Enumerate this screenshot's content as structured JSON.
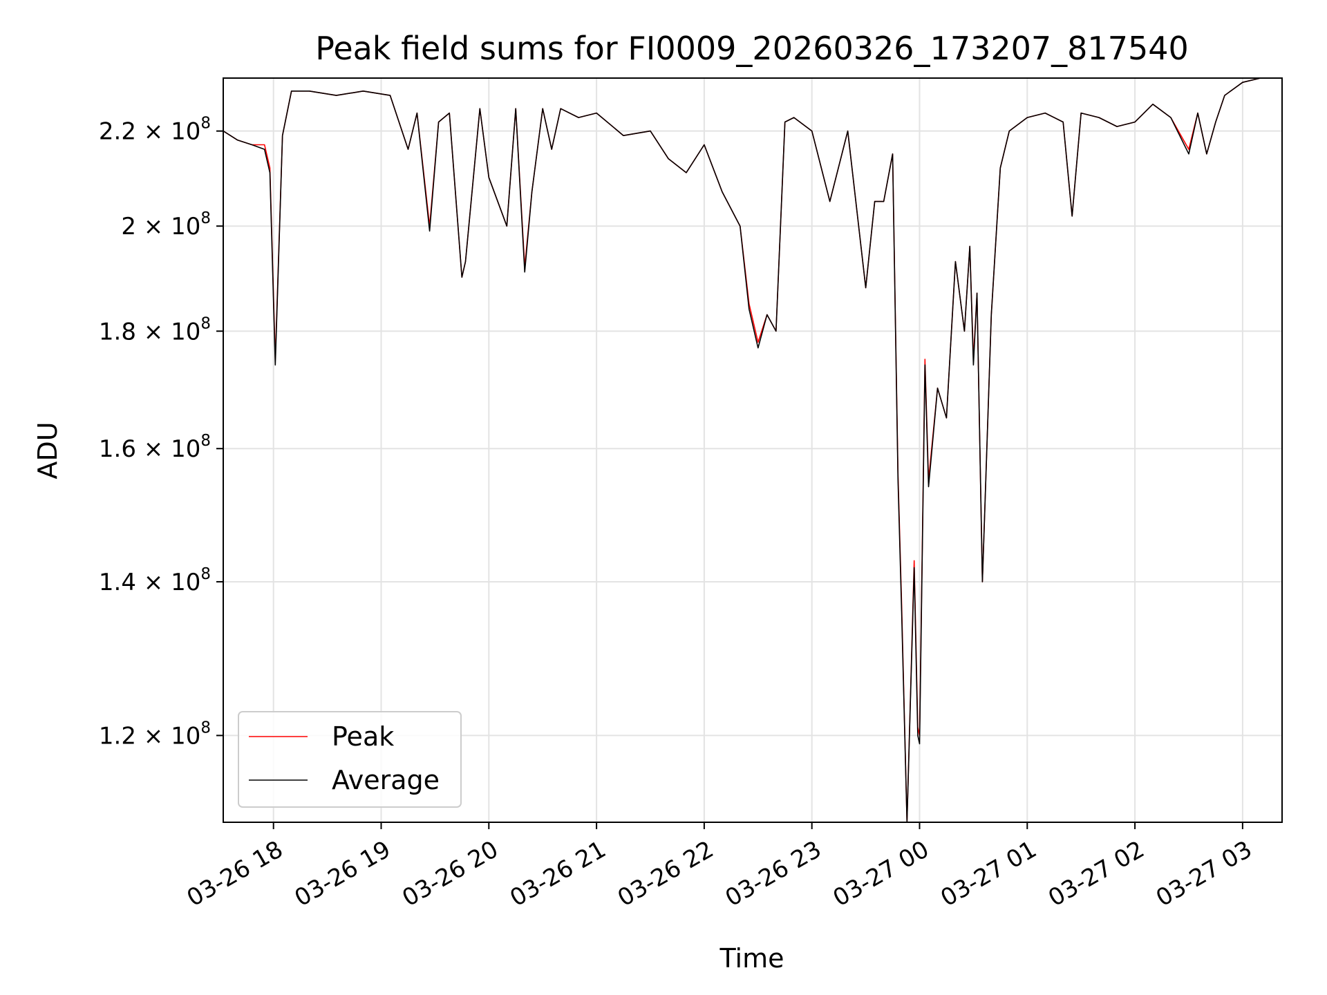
{
  "chart_data": {
    "type": "line",
    "title": "Peak field sums for FI0009_20260326_173207_817540",
    "xlabel": "Time",
    "ylabel": "ADU",
    "y_scale": "log",
    "grid": true,
    "legend_position": "lower-left",
    "xlim": [
      "2026-03-26 17:32",
      "2026-03-27 03:22"
    ],
    "ylim": [
      110000000,
      232000000
    ],
    "x_ticks": [
      "03-26 18",
      "03-26 19",
      "03-26 20",
      "03-26 21",
      "03-26 22",
      "03-26 23",
      "03-27 00",
      "03-27 01",
      "03-27 02",
      "03-27 03"
    ],
    "y_ticks": [
      {
        "value": 120000000,
        "mantissa": "1.2",
        "base": "10",
        "exp": "8"
      },
      {
        "value": 140000000,
        "mantissa": "1.4",
        "base": "10",
        "exp": "8"
      },
      {
        "value": 160000000,
        "mantissa": "1.6",
        "base": "10",
        "exp": "8"
      },
      {
        "value": 180000000,
        "mantissa": "1.8",
        "base": "10",
        "exp": "8"
      },
      {
        "value": 200000000,
        "mantissa": "2",
        "base": "10",
        "exp": "8"
      },
      {
        "value": 220000000,
        "mantissa": "2.2",
        "base": "10",
        "exp": "8"
      }
    ],
    "colors": {
      "Peak": "#ff0000",
      "Average": "#000000"
    },
    "x": [
      "2026-03-26 17:32",
      "2026-03-26 17:40",
      "2026-03-26 17:48",
      "2026-03-26 17:55",
      "2026-03-26 17:58",
      "2026-03-26 18:01",
      "2026-03-26 18:05",
      "2026-03-26 18:10",
      "2026-03-26 18:20",
      "2026-03-26 18:35",
      "2026-03-26 18:50",
      "2026-03-26 19:05",
      "2026-03-26 19:15",
      "2026-03-26 19:20",
      "2026-03-26 19:27",
      "2026-03-26 19:32",
      "2026-03-26 19:38",
      "2026-03-26 19:45",
      "2026-03-26 19:47",
      "2026-03-26 19:55",
      "2026-03-26 20:00",
      "2026-03-26 20:10",
      "2026-03-26 20:15",
      "2026-03-26 20:20",
      "2026-03-26 20:24",
      "2026-03-26 20:30",
      "2026-03-26 20:35",
      "2026-03-26 20:40",
      "2026-03-26 20:50",
      "2026-03-26 21:00",
      "2026-03-26 21:15",
      "2026-03-26 21:30",
      "2026-03-26 21:40",
      "2026-03-26 21:50",
      "2026-03-26 22:00",
      "2026-03-26 22:10",
      "2026-03-26 22:20",
      "2026-03-26 22:25",
      "2026-03-26 22:30",
      "2026-03-26 22:35",
      "2026-03-26 22:40",
      "2026-03-26 22:45",
      "2026-03-26 22:50",
      "2026-03-26 23:00",
      "2026-03-26 23:10",
      "2026-03-26 23:20",
      "2026-03-26 23:30",
      "2026-03-26 23:35",
      "2026-03-26 23:40",
      "2026-03-26 23:45",
      "2026-03-26 23:48",
      "2026-03-26 23:50",
      "2026-03-26 23:53",
      "2026-03-26 23:57",
      "2026-03-26 23:59",
      "2026-03-27 00:00",
      "2026-03-27 00:03",
      "2026-03-27 00:05",
      "2026-03-27 00:10",
      "2026-03-27 00:15",
      "2026-03-27 00:20",
      "2026-03-27 00:25",
      "2026-03-27 00:28",
      "2026-03-27 00:30",
      "2026-03-27 00:32",
      "2026-03-27 00:35",
      "2026-03-27 00:40",
      "2026-03-27 00:45",
      "2026-03-27 00:50",
      "2026-03-27 01:00",
      "2026-03-27 01:10",
      "2026-03-27 01:20",
      "2026-03-27 01:25",
      "2026-03-27 01:30",
      "2026-03-27 01:40",
      "2026-03-27 01:50",
      "2026-03-27 02:00",
      "2026-03-27 02:10",
      "2026-03-27 02:20",
      "2026-03-27 02:30",
      "2026-03-27 02:35",
      "2026-03-27 02:40",
      "2026-03-27 02:45",
      "2026-03-27 02:50",
      "2026-03-27 03:00",
      "2026-03-27 03:10",
      "2026-03-27 03:22"
    ],
    "series": [
      {
        "name": "Peak",
        "values": [
          220000000,
          218000000,
          217000000,
          217000000,
          212000000,
          175000000,
          219000000,
          229000000,
          229000000,
          228000000,
          229000000,
          228000000,
          216000000,
          224000000,
          200000000,
          222000000,
          224000000,
          190000000,
          193000000,
          225000000,
          210000000,
          200000000,
          225000000,
          192000000,
          207000000,
          225000000,
          216000000,
          225000000,
          223000000,
          224000000,
          219000000,
          220000000,
          214000000,
          211000000,
          217000000,
          207000000,
          200000000,
          185000000,
          178000000,
          183000000,
          180000000,
          222000000,
          223000000,
          220000000,
          205000000,
          220000000,
          188000000,
          205000000,
          205000000,
          215000000,
          156000000,
          137000000,
          110000000,
          143000000,
          121000000,
          120000000,
          175000000,
          155000000,
          170000000,
          165000000,
          193000000,
          180000000,
          196000000,
          175000000,
          187000000,
          140000000,
          183000000,
          212000000,
          220000000,
          223000000,
          224000000,
          222000000,
          202000000,
          224000000,
          223000000,
          221000000,
          222000000,
          226000000,
          223000000,
          216000000,
          224000000,
          215000000,
          222000000,
          228000000,
          231000000,
          232000000,
          232000000
        ]
      },
      {
        "name": "Average",
        "values": [
          220000000,
          218000000,
          217000000,
          216000000,
          211000000,
          174000000,
          219000000,
          229000000,
          229000000,
          228000000,
          229000000,
          228000000,
          216000000,
          224000000,
          199000000,
          222000000,
          224000000,
          190000000,
          193000000,
          225000000,
          210000000,
          200000000,
          225000000,
          191000000,
          207000000,
          225000000,
          216000000,
          225000000,
          223000000,
          224000000,
          219000000,
          220000000,
          214000000,
          211000000,
          217000000,
          207000000,
          200000000,
          184000000,
          177000000,
          183000000,
          180000000,
          222000000,
          223000000,
          220000000,
          205000000,
          220000000,
          188000000,
          205000000,
          205000000,
          215000000,
          155000000,
          136000000,
          110000000,
          142000000,
          120000000,
          119000000,
          174000000,
          154000000,
          170000000,
          165000000,
          193000000,
          180000000,
          196000000,
          174000000,
          187000000,
          140000000,
          183000000,
          212000000,
          220000000,
          223000000,
          224000000,
          222000000,
          202000000,
          224000000,
          223000000,
          221000000,
          222000000,
          226000000,
          223000000,
          215000000,
          224000000,
          215000000,
          222000000,
          228000000,
          231000000,
          232000000,
          232000000
        ]
      }
    ]
  }
}
